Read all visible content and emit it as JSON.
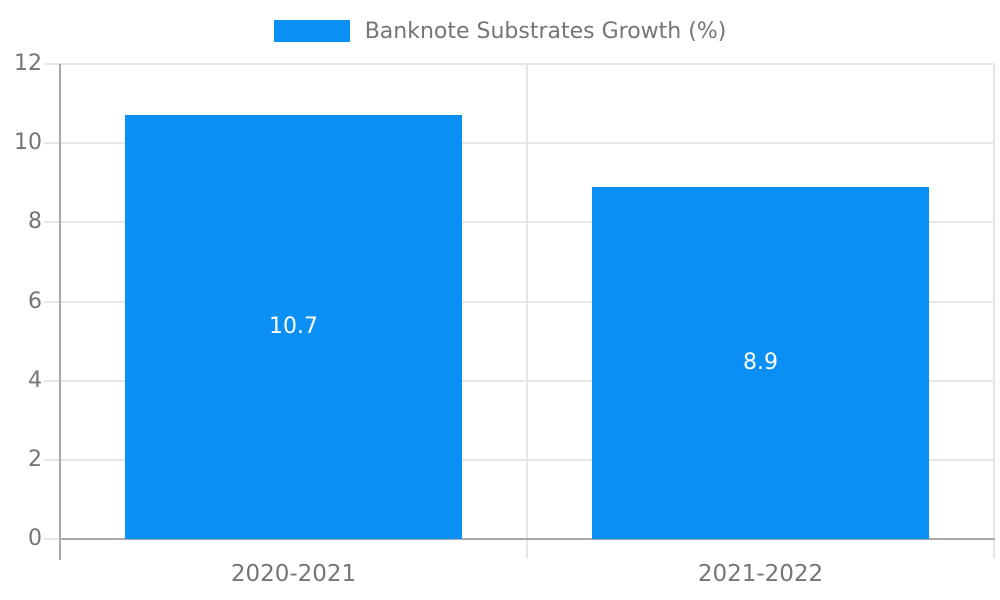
{
  "chart_data": {
    "type": "bar",
    "title": "",
    "legend": {
      "label": "Banknote Substrates Growth (%)",
      "position": "top"
    },
    "categories": [
      "2020-2021",
      "2021-2022"
    ],
    "series": [
      {
        "name": "Banknote Substrates Growth (%)",
        "values": [
          10.7,
          8.9
        ]
      }
    ],
    "data_labels": [
      "10.7",
      "8.9"
    ],
    "yticks": [
      0,
      2,
      4,
      6,
      8,
      10,
      12
    ],
    "ylim": [
      0,
      12
    ],
    "xlabel": "",
    "ylabel": "",
    "grid": true,
    "colors": {
      "bar": "#0a90f5",
      "gridline": "#e6e6e6",
      "axis": "#a9a9a9",
      "text": "#757575",
      "data_label": "#ffffff",
      "background": "#ffffff"
    }
  }
}
